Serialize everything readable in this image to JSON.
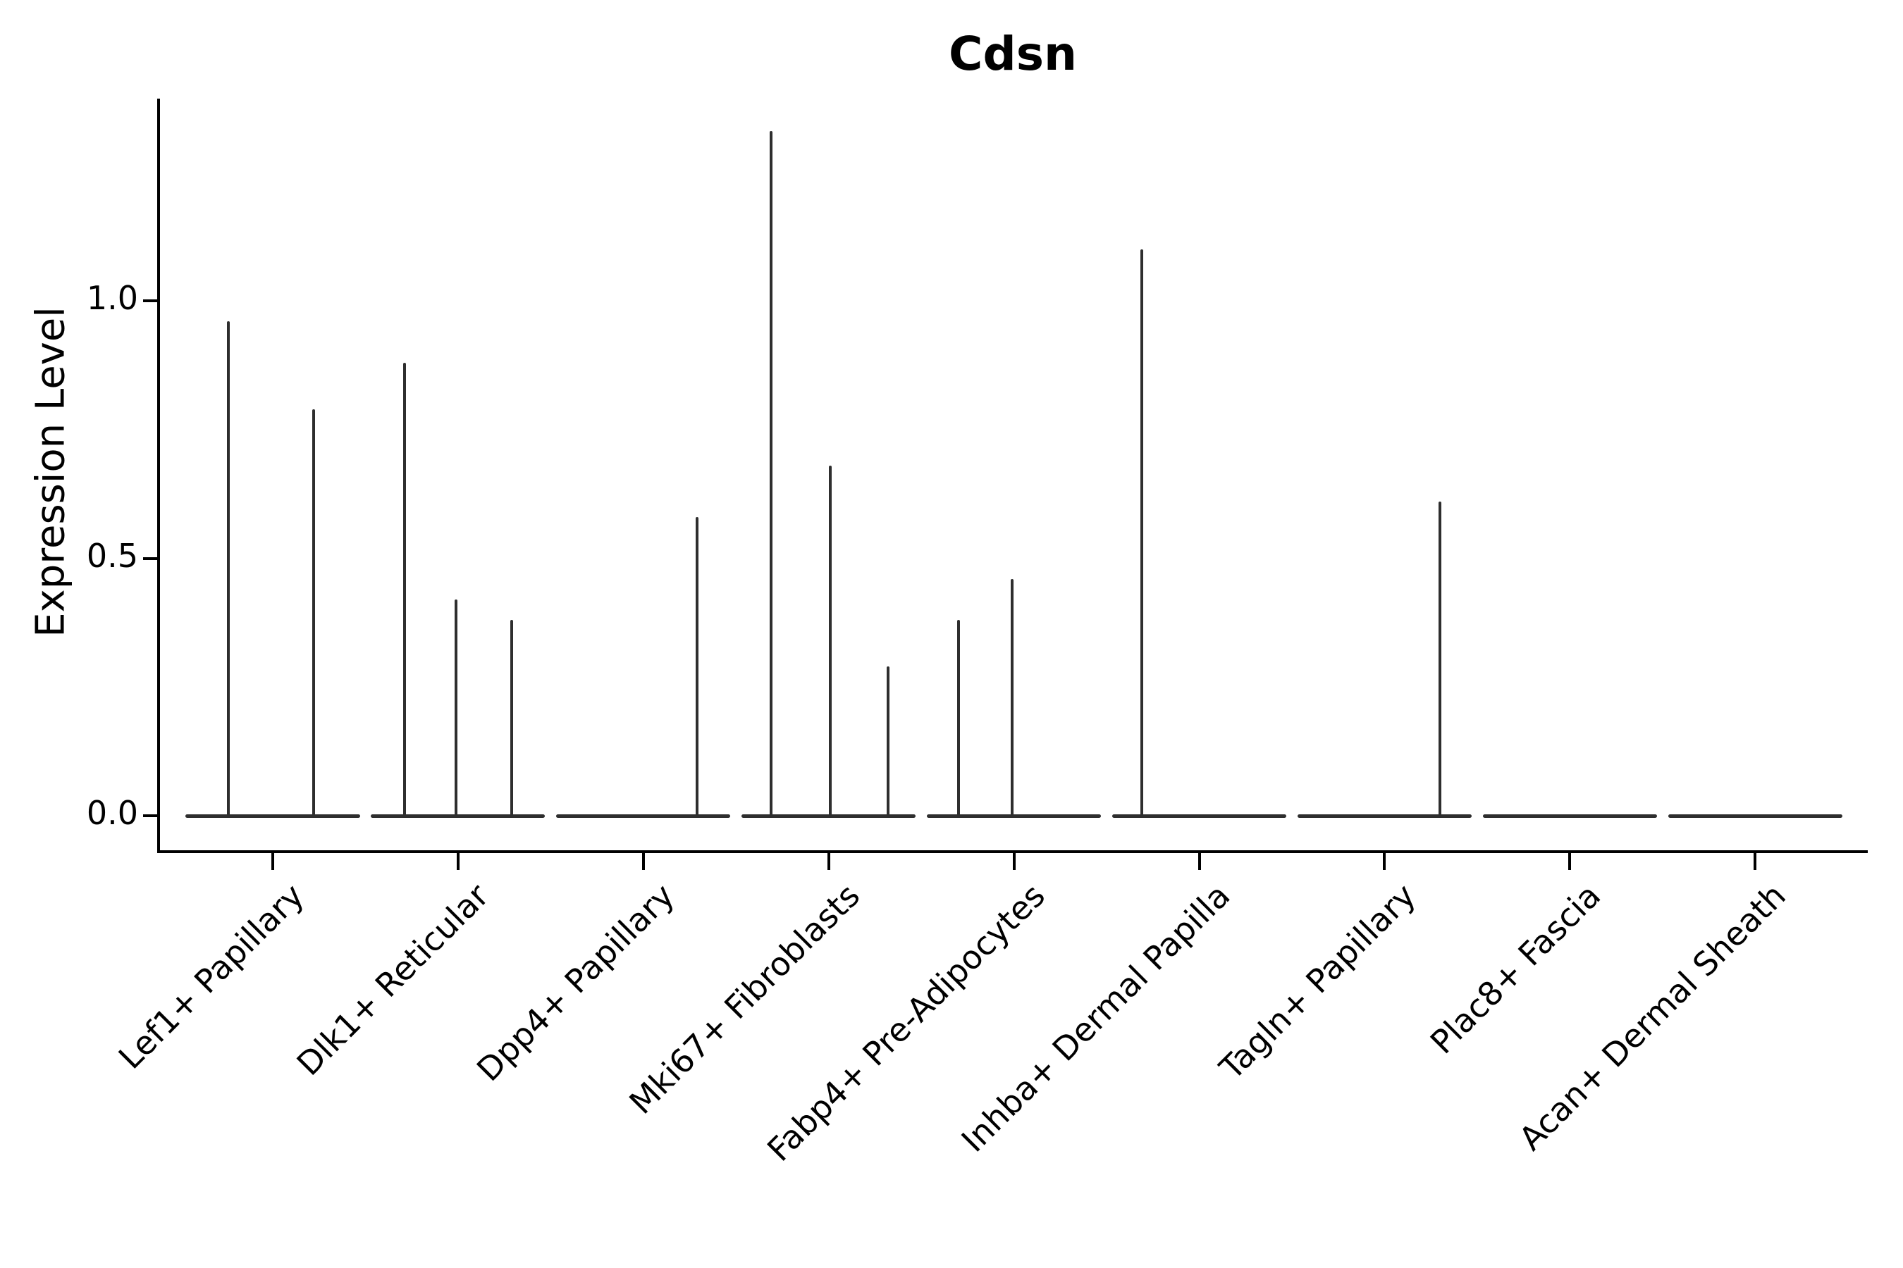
{
  "title": "Cdsn",
  "colors": {
    "background": "#ffffff",
    "axis": "#000000",
    "text": "#000000",
    "violin": "#2e2e2e"
  },
  "chart_data": {
    "type": "violin",
    "title": "Cdsn",
    "xlabel": "",
    "ylabel": "Expression Level",
    "ylim": [
      -0.07,
      1.39
    ],
    "yticks": [
      {
        "value": 0.0,
        "label": "0.0"
      },
      {
        "value": 0.5,
        "label": "0.5"
      },
      {
        "value": 1.0,
        "label": "1.0"
      }
    ],
    "grid": false,
    "legend": "none",
    "xticklabel_rotation": 45,
    "baseline_value": 0.0,
    "baseline_halfwidth": 0.47,
    "categories": [
      {
        "label": "Lef1+ Papillary",
        "violins": [
          {
            "offset": -0.24,
            "max": 0.96
          },
          {
            "offset": 0.22,
            "max": 0.79
          }
        ]
      },
      {
        "label": "Dlk1+ Reticular",
        "violins": [
          {
            "offset": -0.29,
            "max": 0.88
          },
          {
            "offset": -0.01,
            "max": 0.42
          },
          {
            "offset": 0.29,
            "max": 0.38
          }
        ]
      },
      {
        "label": "Dpp4+ Papillary",
        "violins": [
          {
            "offset": 0.29,
            "max": 0.58
          }
        ]
      },
      {
        "label": "Mki67+ Fibroblasts",
        "violins": [
          {
            "offset": -0.31,
            "max": 1.33
          },
          {
            "offset": 0.01,
            "max": 0.68
          },
          {
            "offset": 0.32,
            "max": 0.29
          }
        ]
      },
      {
        "label": "Fabp4+ Pre-Adipocytes",
        "violins": [
          {
            "offset": -0.3,
            "max": 0.38
          },
          {
            "offset": -0.01,
            "max": 0.46
          }
        ]
      },
      {
        "label": "Inhba+ Dermal Papilla",
        "violins": [
          {
            "offset": -0.31,
            "max": 1.1
          }
        ]
      },
      {
        "label": "Tagln+ Papillary",
        "violins": [
          {
            "offset": 0.3,
            "max": 0.61
          }
        ]
      },
      {
        "label": "Plac8+ Fascia",
        "violins": []
      },
      {
        "label": "Acan+ Dermal Sheath",
        "violins": []
      }
    ]
  }
}
